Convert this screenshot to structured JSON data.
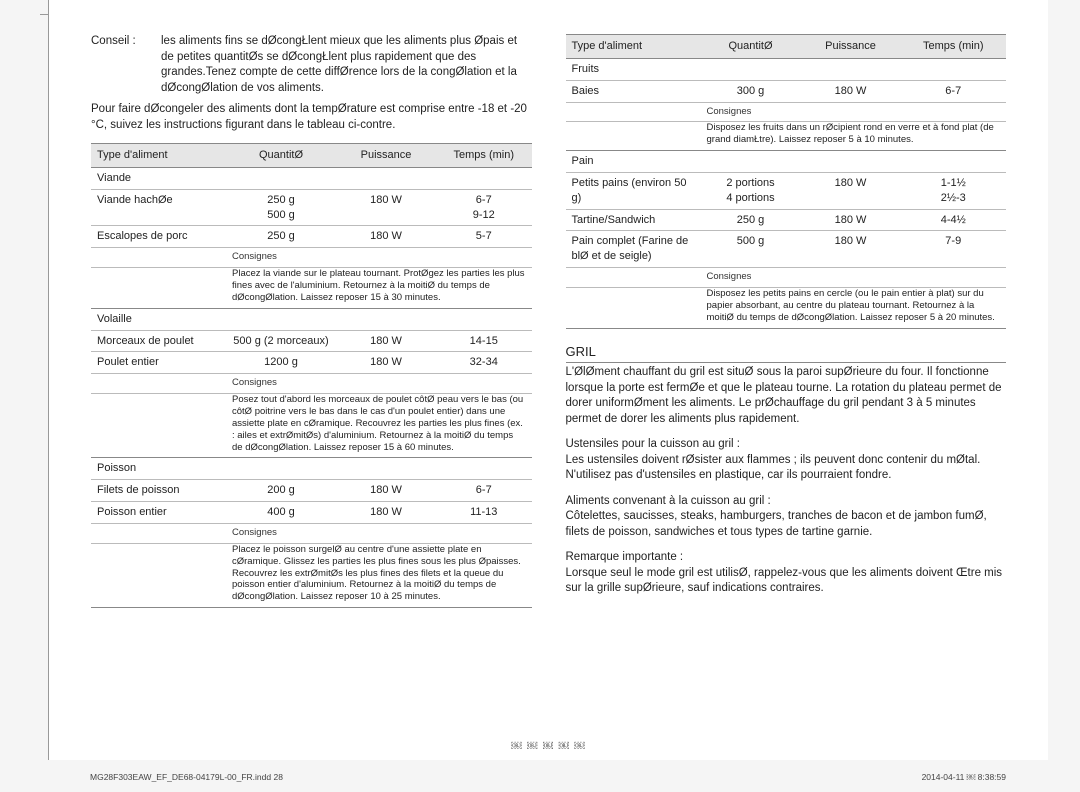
{
  "conseil": {
    "label": "Conseil :",
    "text": "les aliments ﬁns se dØcongŁlent mieux que les aliments plus Øpais et de petites quantitØs se dØcongŁlent plus rapidement que des grandes.Tenez compte de cette diffØrence lors de la congØlation et la dØcongØlation de vos aliments."
  },
  "intro_left": "Pour faire dØcongeler des aliments dont la tempØrature est comprise entre -18 et -20 °C, suivez les instructions ﬁgurant dans le tableau ci-contre.",
  "headers": {
    "type": "Type d'aliment",
    "qty": "QuantitØ",
    "power": "Puissance",
    "time": "Temps (min)"
  },
  "left_table": {
    "categories": [
      {
        "name": "Viande",
        "rows": [
          {
            "label": "Viande hachØe",
            "qty": "250 g\n500 g",
            "power": "180 W",
            "time": "6-7\n9-12"
          },
          {
            "label": "Escalopes de porc",
            "qty": "250 g",
            "power": "180 W",
            "time": "5-7"
          }
        ],
        "consignes": "Placez la viande sur le plateau tournant. ProtØgez les parties les plus ﬁnes avec de l'aluminium. Retournez à la moitiØ du temps de dØcongØlation. Laissez reposer 15 à 30 minutes."
      },
      {
        "name": "Volaille",
        "rows": [
          {
            "label": "Morceaux de poulet",
            "qty": "500 g (2 morceaux)",
            "power": "180 W",
            "time": "14-15"
          },
          {
            "label": "Poulet entier",
            "qty": "1200 g",
            "power": "180 W",
            "time": "32-34"
          }
        ],
        "consignes": "Posez tout d'abord les morceaux de poulet côtØ peau vers le bas (ou côtØ poitrine vers le bas dans le cas d'un poulet entier) dans une assiette plate en cØramique. Recouvrez les parties les plus ﬁnes (ex. : ailes et extrØmitØs) d'aluminium. Retournez à la moitiØ du temps de dØcongØlation. Laissez reposer 15 à 60 minutes."
      },
      {
        "name": "Poisson",
        "rows": [
          {
            "label": "Filets de poisson",
            "qty": "200 g",
            "power": "180 W",
            "time": "6-7"
          },
          {
            "label": "Poisson entier",
            "qty": "400 g",
            "power": "180 W",
            "time": "11-13"
          }
        ],
        "consignes": "Placez le poisson surgelØ au centre d'une assiette plate en cØramique. Glissez les parties les plus ﬁnes sous les plus Øpaisses. Recouvrez les extrØmitØs les plus ﬁnes des ﬁlets et la queue du poisson entier d'aluminium. Retournez à la moitiØ du temps de dØcongØlation. Laissez reposer 10 à 25 minutes."
      }
    ]
  },
  "right_table": {
    "categories": [
      {
        "name": "Fruits",
        "rows": [
          {
            "label": "Baies",
            "qty": "300 g",
            "power": "180 W",
            "time": "6-7"
          }
        ],
        "consignes": "Disposez les fruits dans un rØcipient rond en verre et à fond plat (de grand diamŁtre). Laissez reposer 5 à 10 minutes."
      },
      {
        "name": "Pain",
        "rows": [
          {
            "label": "Petits pains (environ 50 g)",
            "qty": "2 portions\n4 portions",
            "power": "180 W",
            "time": "1-1½\n2½-3"
          },
          {
            "label": "Tartine/Sandwich",
            "qty": "250 g",
            "power": "180 W",
            "time": "4-4½"
          },
          {
            "label": "Pain complet (Farine de blØ et de seigle)",
            "qty": "500 g",
            "power": "180 W",
            "time": "7-9"
          }
        ],
        "consignes": "Disposez les petits pains en cercle (ou le pain entier à plat) sur du papier absorbant, au centre du plateau tournant. Retournez à la moitiØ du temps de dØcongØlation. Laissez reposer 5 à 20 minutes."
      }
    ]
  },
  "gril": {
    "title": "GRIL",
    "p1": "L'ØlØment chauffant du gril est situØ sous la paroi supØrieure du four. Il fonctionne lorsque la porte est fermØe et que le plateau tourne. La rotation du plateau permet de dorer uniformØment les aliments. Le prØchauffage du gril pendant 3 à 5 minutes permet de dorer les aliments plus rapidement.",
    "u_label": "Ustensiles pour la cuisson au gril :",
    "u_text": "Les ustensiles doivent rØsister aux ﬂammes ; ils peuvent donc contenir du mØtal. N'utilisez pas d'ustensiles en plastique, car ils pourraient fondre.",
    "a_label": "Aliments convenant à la cuisson au gril :",
    "a_text": "Côtelettes, saucisses, steaks, hamburgers, tranches de bacon et de jambon fumØ, ﬁlets de poisson, sandwiches et tous types de tartine garnie.",
    "r_label": "Remarque importante :",
    "r_text": "Lorsque seul le mode gril est utilisØ, rappelez-vous que les aliments doivent Œtre mis sur la grille supØrieure, sauf indications contraires."
  },
  "footer": {
    "file": "MG28F303EAW_EF_DE68-04179L-00_FR.indd   28",
    "date": "2014-04-11   ￼ 8:38:59",
    "page_marks": "￼ ￼ ￼ ￼ ￼"
  },
  "consignes_label": "Consignes"
}
